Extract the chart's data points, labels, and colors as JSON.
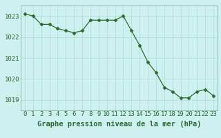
{
  "x": [
    0,
    1,
    2,
    3,
    4,
    5,
    6,
    7,
    8,
    9,
    10,
    11,
    12,
    13,
    14,
    15,
    16,
    17,
    18,
    19,
    20,
    21,
    22,
    23
  ],
  "y": [
    1023.1,
    1023.0,
    1022.6,
    1022.6,
    1022.4,
    1022.3,
    1022.2,
    1022.3,
    1022.8,
    1022.8,
    1022.8,
    1022.8,
    1023.0,
    1022.3,
    1021.6,
    1020.8,
    1020.3,
    1019.6,
    1019.4,
    1019.1,
    1019.1,
    1019.4,
    1019.5,
    1019.2
  ],
  "xlabel": "Graphe pression niveau de la mer (hPa)",
  "ylim": [
    1018.5,
    1023.5
  ],
  "xlim": [
    -0.5,
    23.5
  ],
  "yticks": [
    1019,
    1020,
    1021,
    1022,
    1023
  ],
  "xticks": [
    0,
    1,
    2,
    3,
    4,
    5,
    6,
    7,
    8,
    9,
    10,
    11,
    12,
    13,
    14,
    15,
    16,
    17,
    18,
    19,
    20,
    21,
    22,
    23
  ],
  "line_color": "#2d6a2d",
  "marker": "D",
  "marker_size": 2.5,
  "bg_color": "#cff0f0",
  "grid_color": "#aaddcc",
  "xlabel_color": "#2d6a2d",
  "xlabel_fontsize": 7.5,
  "tick_fontsize": 6.5,
  "tick_color": "#2d6a2d",
  "spine_color": "#8ab8a8"
}
